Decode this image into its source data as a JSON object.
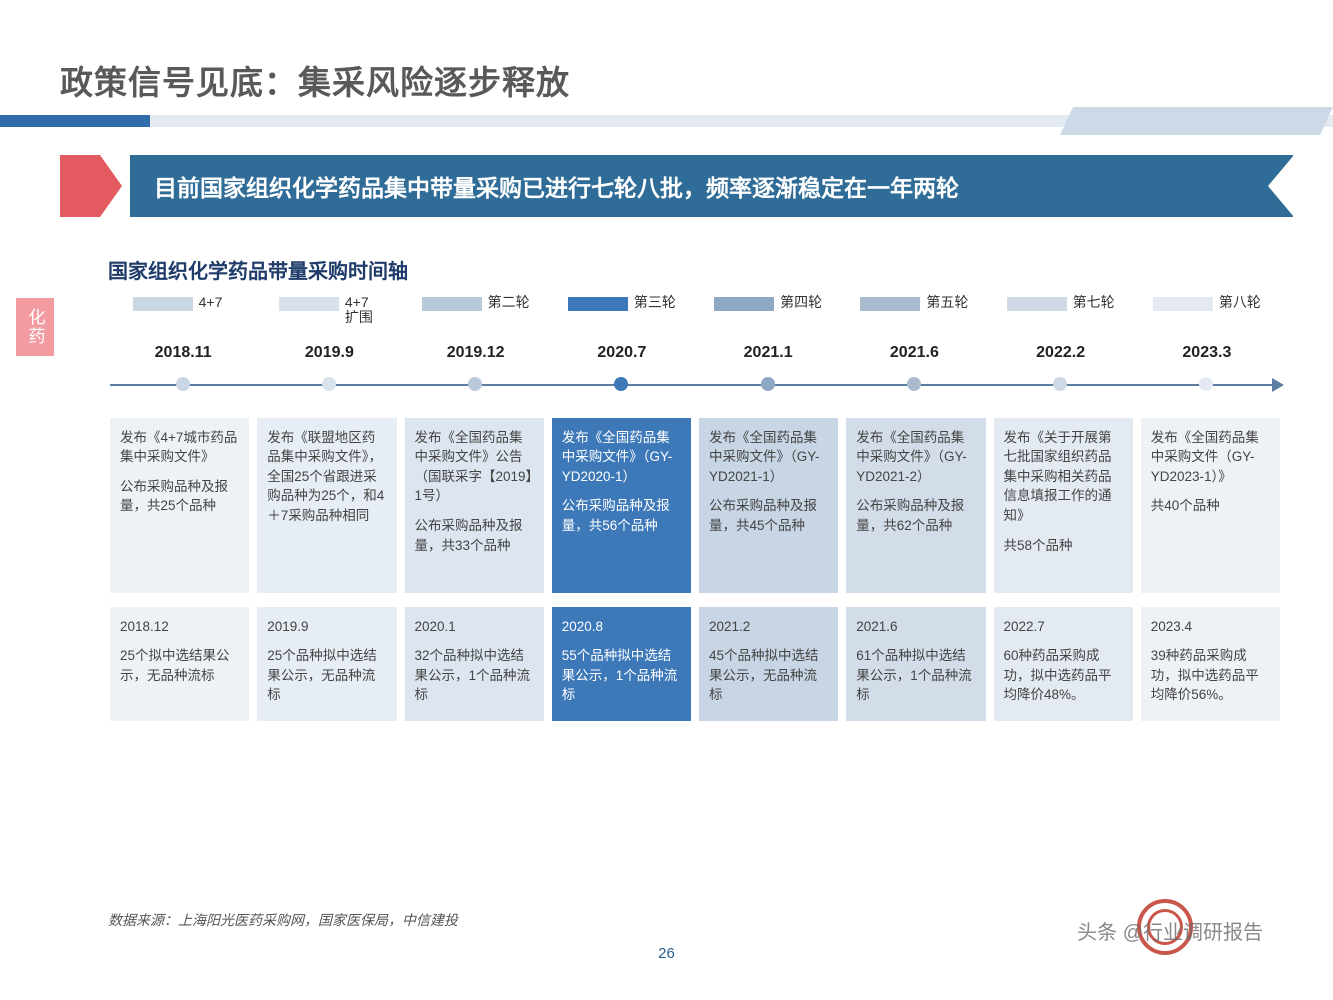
{
  "page_title": "政策信号见底：集采风险逐步释放",
  "ribbon_text": "目前国家组织化学药品集中带量采购已进行七轮八批，频率逐渐稳定在一年两轮",
  "section_heading": "国家组织化学药品带量采购时间轴",
  "side_tag": "化药",
  "timeline": {
    "axis_color": "#5a7fa3",
    "legend": [
      {
        "label": "4+7",
        "color": "#c9d7e5"
      },
      {
        "label": "4+7\n扩围",
        "color": "#d8e1ec"
      },
      {
        "label": "第二轮",
        "color": "#b9c9dc"
      },
      {
        "label": "第三轮",
        "color": "#3d78b8"
      },
      {
        "label": "第四轮",
        "color": "#8fa8c5"
      },
      {
        "label": "第五轮",
        "color": "#aabbd0"
      },
      {
        "label": "第七轮",
        "color": "#cfd9e6"
      },
      {
        "label": "第八轮",
        "color": "#e3e9f1"
      }
    ],
    "dates": [
      "2018.11",
      "2019.9",
      "2019.12",
      "2020.7",
      "2021.1",
      "2021.6",
      "2022.2",
      "2023.3"
    ],
    "dots": [
      {
        "pos_pct": 6.2,
        "color": "#c9d7e5"
      },
      {
        "pos_pct": 18.7,
        "color": "#d8e1ec"
      },
      {
        "pos_pct": 31.2,
        "color": "#b9c9dc"
      },
      {
        "pos_pct": 43.7,
        "color": "#3d78b8"
      },
      {
        "pos_pct": 56.2,
        "color": "#8fa8c5"
      },
      {
        "pos_pct": 68.7,
        "color": "#aabbd0"
      },
      {
        "pos_pct": 81.2,
        "color": "#cfd9e6"
      },
      {
        "pos_pct": 93.7,
        "color": "#e3e9f1"
      }
    ],
    "cards_top": [
      {
        "bg": "#eef2f7",
        "white": false,
        "p1": "发布《4+7城市药品集中采购文件》",
        "p2": "公布采购品种及报量，共25个品种"
      },
      {
        "bg": "#e6edf4",
        "white": false,
        "p1": "发布《联盟地区药品集中采购文件》，全国25个省跟进采购品种为25个，和4＋7采购品种相同",
        "p2": ""
      },
      {
        "bg": "#dde6f0",
        "white": false,
        "p1": "发布《全国药品集中采购文件》公告（国联采字【2019】1号）",
        "p2": "公布采购品种及报量，共33个品种"
      },
      {
        "bg": "#3d78b8",
        "white": true,
        "p1": "发布《全国药品集中采购文件》（GY-YD2020-1）",
        "p2": "公布采购品种及报量，共56个品种"
      },
      {
        "bg": "#c8d5e4",
        "white": false,
        "p1": "发布《全国药品集中采购文件》（GY-YD2021-1）",
        "p2": "公布采购品种及报量，共45个品种"
      },
      {
        "bg": "#d3dde9",
        "white": false,
        "p1": "发布《全国药品集中采购文件》（GY-YD2021-2）",
        "p2": "公布采购品种及报量，共62个品种"
      },
      {
        "bg": "#e4eaf2",
        "white": false,
        "p1": "发布《关于开展第七批国家组织药品集中采购相关药品信息填报工作的通知》",
        "p2": "共58个品种"
      },
      {
        "bg": "#eef2f7",
        "white": false,
        "p1": "发布《全国药品集中采购文件（GY-YD2023-1）》",
        "p2": "共40个品种"
      }
    ],
    "cards_bottom": [
      {
        "bg": "#eef2f7",
        "white": false,
        "date": "2018.12",
        "text": "25个拟中选结果公示，无品种流标"
      },
      {
        "bg": "#e6edf4",
        "white": false,
        "date": "2019.9",
        "text": "25个品种拟中选结果公示，无品种流标"
      },
      {
        "bg": "#dde6f0",
        "white": false,
        "date": "2020.1",
        "text": "32个品种拟中选结果公示，1个品种流标"
      },
      {
        "bg": "#3d78b8",
        "white": true,
        "date": "2020.8",
        "text": "55个品种拟中选结果公示，1个品种流标"
      },
      {
        "bg": "#c8d5e4",
        "white": false,
        "date": "2021.2",
        "text": "45个品种拟中选结果公示，无品种流标"
      },
      {
        "bg": "#d3dde9",
        "white": false,
        "date": "2021.6",
        "text": "61个品种拟中选结果公示，1个品种流标"
      },
      {
        "bg": "#e4eaf2",
        "white": false,
        "date": "2022.7",
        "text": "60种药品采购成功，拟中选药品平均降价48%。"
      },
      {
        "bg": "#eef2f7",
        "white": false,
        "date": "2023.4",
        "text": "39种药品采购成功，拟中选药品平均降价56%。"
      }
    ]
  },
  "footer_source": "数据来源：上海阳光医药采购网，国家医保局，中信建投",
  "page_number": "26",
  "watermark": "头条 @行业调研报告"
}
